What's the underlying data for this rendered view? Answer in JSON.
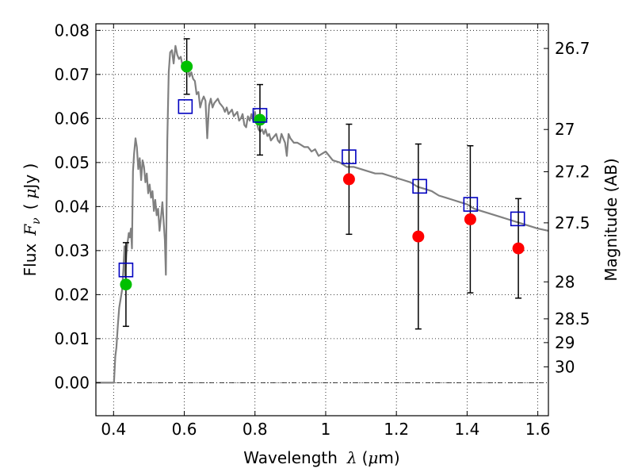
{
  "chart_data": {
    "type": "scatter",
    "xlabel_text": "Wavelength",
    "xlabel_symbol": "λ",
    "xlabel_unit_open": "(",
    "xlabel_unit_mu": "μ",
    "xlabel_unit_rest": "m)",
    "ylabel_text": "Flux",
    "ylabel_symbol_F": "F",
    "ylabel_symbol_sub": "ν",
    "ylabel_unit_open": "(",
    "ylabel_unit_mu": "μ",
    "ylabel_unit_rest": "Jy )",
    "y2label": "Magnitude (AB)",
    "xlim": [
      0.35,
      1.63
    ],
    "ylim": [
      -0.0075,
      0.0815
    ],
    "x_ticks": [
      0.4,
      0.6,
      0.8,
      1.0,
      1.2,
      1.4,
      1.6
    ],
    "x_tick_labels": [
      "0.4",
      "0.6",
      "0.8",
      "1",
      "1.2",
      "1.4",
      "1.6"
    ],
    "y_ticks": [
      0.0,
      0.01,
      0.02,
      0.03,
      0.04,
      0.05,
      0.06,
      0.07,
      0.08
    ],
    "y_tick_labels": [
      "0.00",
      "0.01",
      "0.02",
      "0.03",
      "0.04",
      "0.05",
      "0.06",
      "0.07",
      "0.08"
    ],
    "mag_ticks": [
      {
        "label": "26.7",
        "flux": 0.0759
      },
      {
        "label": "27",
        "flux": 0.0575
      },
      {
        "label": "27.2",
        "flux": 0.0479
      },
      {
        "label": "27.5",
        "flux": 0.0363
      },
      {
        "label": "28",
        "flux": 0.0229
      },
      {
        "label": "28.5",
        "flux": 0.0145
      },
      {
        "label": "29",
        "flux": 0.0091
      },
      {
        "label": "30",
        "flux": 0.0036
      }
    ],
    "grid": true,
    "zero_line": true,
    "colors": {
      "model": "#808080",
      "green_point": "#00c000",
      "red_point": "#ff0000",
      "square": "#0000c0",
      "errorbar": "#000000"
    },
    "model_spectrum": {
      "x": [
        0.35,
        0.39,
        0.401,
        0.405,
        0.408,
        0.412,
        0.416,
        0.42,
        0.424,
        0.428,
        0.431,
        0.433,
        0.436,
        0.44,
        0.443,
        0.446,
        0.449,
        0.452,
        0.455,
        0.458,
        0.462,
        0.466,
        0.47,
        0.474,
        0.478,
        0.482,
        0.486,
        0.49,
        0.494,
        0.498,
        0.502,
        0.506,
        0.51,
        0.514,
        0.518,
        0.522,
        0.526,
        0.53,
        0.534,
        0.538,
        0.542,
        0.545,
        0.548,
        0.552,
        0.556,
        0.56,
        0.565,
        0.57,
        0.575,
        0.58,
        0.585,
        0.59,
        0.595,
        0.6,
        0.605,
        0.61,
        0.615,
        0.62,
        0.625,
        0.63,
        0.635,
        0.64,
        0.645,
        0.65,
        0.655,
        0.66,
        0.665,
        0.67,
        0.675,
        0.68,
        0.685,
        0.69,
        0.695,
        0.7,
        0.705,
        0.71,
        0.715,
        0.72,
        0.725,
        0.73,
        0.735,
        0.74,
        0.745,
        0.75,
        0.755,
        0.76,
        0.765,
        0.77,
        0.775,
        0.78,
        0.785,
        0.79,
        0.795,
        0.8,
        0.805,
        0.81,
        0.815,
        0.82,
        0.825,
        0.83,
        0.835,
        0.84,
        0.845,
        0.85,
        0.855,
        0.86,
        0.865,
        0.87,
        0.875,
        0.88,
        0.885,
        0.89,
        0.895,
        0.9,
        0.91,
        0.92,
        0.93,
        0.94,
        0.95,
        0.96,
        0.97,
        0.98,
        0.99,
        1.0,
        1.02,
        1.04,
        1.06,
        1.08,
        1.1,
        1.12,
        1.14,
        1.16,
        1.18,
        1.2,
        1.22,
        1.24,
        1.26,
        1.28,
        1.3,
        1.32,
        1.34,
        1.36,
        1.38,
        1.4,
        1.42,
        1.44,
        1.46,
        1.48,
        1.5,
        1.52,
        1.54,
        1.56,
        1.58,
        1.6,
        1.63
      ],
      "y": [
        0.0,
        0.0,
        0.0,
        0.006,
        0.008,
        0.013,
        0.017,
        0.019,
        0.021,
        0.026,
        0.031,
        0.024,
        0.029,
        0.032,
        0.034,
        0.033,
        0.035,
        0.0305,
        0.048,
        0.052,
        0.0555,
        0.0535,
        0.0485,
        0.051,
        0.046,
        0.0505,
        0.049,
        0.0455,
        0.0475,
        0.043,
        0.045,
        0.042,
        0.0435,
        0.039,
        0.0415,
        0.038,
        0.0395,
        0.0345,
        0.0375,
        0.041,
        0.036,
        0.0325,
        0.0245,
        0.055,
        0.0705,
        0.075,
        0.0755,
        0.0725,
        0.0765,
        0.0745,
        0.0735,
        0.074,
        0.072,
        0.0715,
        0.0705,
        0.072,
        0.0695,
        0.0705,
        0.069,
        0.0685,
        0.0655,
        0.066,
        0.0625,
        0.064,
        0.065,
        0.064,
        0.0555,
        0.063,
        0.0645,
        0.0625,
        0.0635,
        0.064,
        0.0645,
        0.0635,
        0.063,
        0.0625,
        0.0615,
        0.0625,
        0.061,
        0.0615,
        0.062,
        0.0605,
        0.061,
        0.0615,
        0.0595,
        0.06,
        0.061,
        0.0585,
        0.058,
        0.0605,
        0.0595,
        0.061,
        0.0595,
        0.0615,
        0.059,
        0.0575,
        0.057,
        0.0575,
        0.0565,
        0.0575,
        0.056,
        0.0565,
        0.055,
        0.0555,
        0.056,
        0.0565,
        0.055,
        0.0545,
        0.0565,
        0.0555,
        0.0545,
        0.0515,
        0.0565,
        0.0555,
        0.0545,
        0.0545,
        0.054,
        0.0535,
        0.0535,
        0.0525,
        0.053,
        0.0515,
        0.052,
        0.0525,
        0.0505,
        0.05,
        0.049,
        0.049,
        0.0485,
        0.048,
        0.0475,
        0.0475,
        0.047,
        0.0465,
        0.046,
        0.0455,
        0.0445,
        0.044,
        0.0435,
        0.0425,
        0.042,
        0.0415,
        0.041,
        0.0405,
        0.0395,
        0.039,
        0.0385,
        0.038,
        0.0375,
        0.037,
        0.0365,
        0.036,
        0.0355,
        0.035,
        0.0345
      ]
    },
    "observed_points": [
      {
        "x": 0.435,
        "y": 0.0223,
        "err": 0.0095,
        "color": "green"
      },
      {
        "x": 0.607,
        "y": 0.0718,
        "err": 0.0063,
        "color": "green"
      },
      {
        "x": 0.814,
        "y": 0.0597,
        "err": 0.008,
        "color": "green"
      },
      {
        "x": 1.066,
        "y": 0.0462,
        "err": 0.0125,
        "color": "red"
      },
      {
        "x": 1.262,
        "y": 0.0332,
        "err": 0.021,
        "color": "red"
      },
      {
        "x": 1.409,
        "y": 0.0371,
        "err": 0.0167,
        "color": "red"
      },
      {
        "x": 1.545,
        "y": 0.0305,
        "err": 0.0113,
        "color": "red"
      }
    ],
    "model_points": [
      {
        "x": 0.435,
        "y": 0.0256
      },
      {
        "x": 0.603,
        "y": 0.0627
      },
      {
        "x": 0.814,
        "y": 0.0607
      },
      {
        "x": 1.066,
        "y": 0.0513
      },
      {
        "x": 1.266,
        "y": 0.0446
      },
      {
        "x": 1.41,
        "y": 0.0405
      },
      {
        "x": 1.543,
        "y": 0.0372
      }
    ]
  }
}
